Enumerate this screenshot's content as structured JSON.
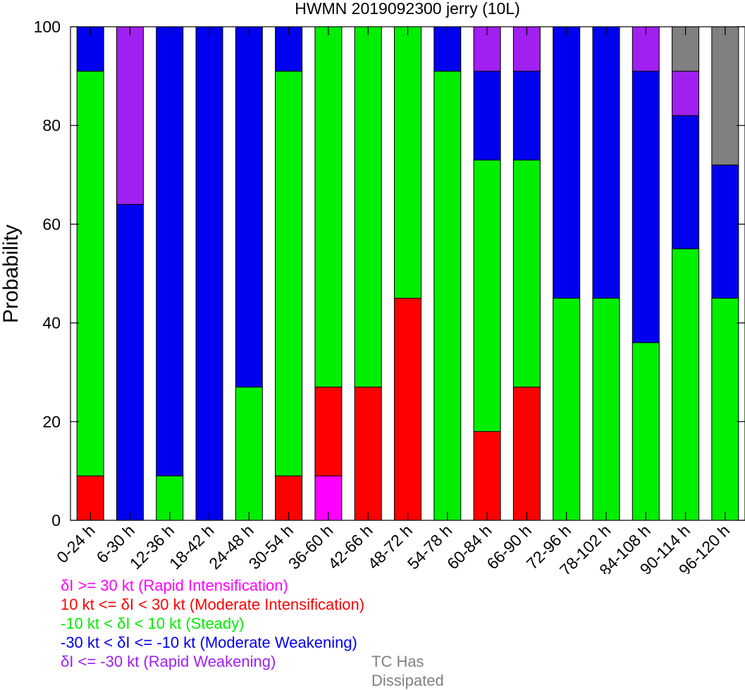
{
  "chart_data": {
    "type": "bar",
    "stacked": true,
    "title": "HWMN 2019092300 jerry (10L)",
    "xlabel": "",
    "ylabel": "Probability",
    "ylim": [
      0,
      100
    ],
    "yticks": [
      0,
      20,
      40,
      60,
      80,
      100
    ],
    "grid": false,
    "categories": [
      "0-24 h",
      "6-30 h",
      "12-36 h",
      "18-42 h",
      "24-48 h",
      "30-54 h",
      "36-60 h",
      "42-66 h",
      "48-72 h",
      "54-78 h",
      "60-84 h",
      "66-90 h",
      "72-96 h",
      "78-102 h",
      "84-108 h",
      "90-114 h",
      "96-120 h"
    ],
    "series": [
      {
        "key": "ri",
        "color": "#ff00ff",
        "values": [
          0,
          0,
          0,
          0,
          0,
          0,
          9,
          0,
          0,
          0,
          0,
          0,
          0,
          0,
          0,
          0,
          0
        ]
      },
      {
        "key": "mi",
        "color": "#ff0000",
        "values": [
          9,
          0,
          0,
          0,
          0,
          9,
          18,
          27,
          45,
          0,
          18,
          27,
          0,
          0,
          0,
          0,
          0
        ]
      },
      {
        "key": "st",
        "color": "#00ee00",
        "values": [
          82,
          0,
          9,
          0,
          27,
          82,
          73,
          73,
          55,
          91,
          55,
          46,
          45,
          45,
          36,
          55,
          45
        ]
      },
      {
        "key": "mw",
        "color": "#0000ee",
        "values": [
          9,
          64,
          91,
          100,
          73,
          9,
          0,
          0,
          0,
          9,
          18,
          18,
          55,
          55,
          55,
          27,
          27
        ]
      },
      {
        "key": "rw",
        "color": "#a020f0",
        "values": [
          0,
          36,
          0,
          0,
          0,
          0,
          0,
          0,
          0,
          0,
          9,
          9,
          0,
          0,
          9,
          9,
          0
        ]
      },
      {
        "key": "dis",
        "color": "#808080",
        "values": [
          0,
          0,
          0,
          0,
          0,
          0,
          0,
          0,
          0,
          0,
          0,
          0,
          0,
          0,
          0,
          9,
          28
        ]
      }
    ]
  },
  "legend": {
    "ri": {
      "text": "δI >= 30 kt (Rapid Intensification)",
      "color": "#ff00ff"
    },
    "mi": {
      "text": "10 kt <= δI < 30 kt (Moderate Intensification)",
      "color": "#ff0000"
    },
    "st": {
      "text": "-10 kt < δI < 10 kt (Steady)",
      "color": "#00ee00"
    },
    "mw": {
      "text": "-30 kt < δI <= -10 kt (Moderate Weakening)",
      "color": "#0000ee"
    },
    "rw": {
      "text": "δI <= -30 kt (Rapid Weakening)",
      "color": "#a020f0"
    },
    "dis": {
      "text": "TC Has Dissipated",
      "color": "#808080"
    }
  }
}
